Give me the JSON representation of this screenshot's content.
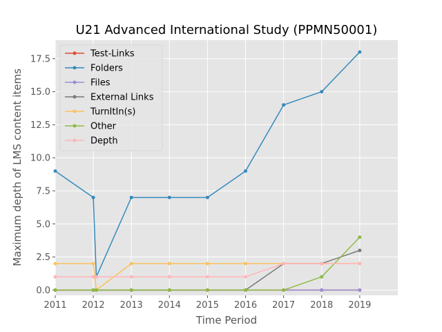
{
  "chart_data": {
    "type": "line",
    "title": "U21 Advanced International Study (PPMN50001)",
    "xlabel": "Time Period",
    "ylabel": "Maximum depth of LMS content items",
    "xlim": [
      2011,
      2020
    ],
    "ylim": [
      -0.4,
      18.9
    ],
    "xticks": [
      2011,
      2012,
      2013,
      2014,
      2015,
      2016,
      2017,
      2018,
      2019
    ],
    "xtick_labels": [
      "2011",
      "2012",
      "2013",
      "2014",
      "2015",
      "2016",
      "2017",
      "2018",
      "2019"
    ],
    "yticks": [
      0,
      2.5,
      5,
      7.5,
      10,
      12.5,
      15,
      17.5
    ],
    "ytick_labels": [
      "0.0",
      "2.5",
      "5.0",
      "7.5",
      "10.0",
      "12.5",
      "15.0",
      "17.5"
    ],
    "grid": true,
    "legend_position": "top-left",
    "x": [
      2011.0,
      2012.0,
      2012.08,
      2013.0,
      2014.0,
      2015.0,
      2016.0,
      2017.0,
      2018.0,
      2019.0
    ],
    "series": [
      {
        "name": "Test-Links",
        "color": "#E24A33",
        "values": [
          0,
          0,
          0,
          0,
          0,
          0,
          0,
          0,
          0,
          0
        ]
      },
      {
        "name": "Folders",
        "color": "#348ABD",
        "values": [
          9,
          7,
          1,
          7,
          7,
          7,
          9,
          14,
          15,
          18
        ]
      },
      {
        "name": "Files",
        "color": "#988ED5",
        "values": [
          0,
          0,
          0,
          0,
          0,
          0,
          0,
          0,
          0,
          0
        ]
      },
      {
        "name": "External Links",
        "color": "#777777",
        "values": [
          0,
          0,
          0,
          0,
          0,
          0,
          0,
          2,
          2,
          3
        ]
      },
      {
        "name": "TurnItIn(s)",
        "color": "#FBC15E",
        "values": [
          2,
          2,
          0,
          2,
          2,
          2,
          2,
          2,
          2,
          2
        ]
      },
      {
        "name": "Other",
        "color": "#8EBA42",
        "values": [
          0,
          0,
          0,
          0,
          0,
          0,
          0,
          0,
          1,
          4
        ]
      },
      {
        "name": "Depth",
        "color": "#FFB5B8",
        "values": [
          1,
          1,
          1,
          1,
          1,
          1,
          1,
          2,
          2,
          2
        ]
      }
    ]
  }
}
